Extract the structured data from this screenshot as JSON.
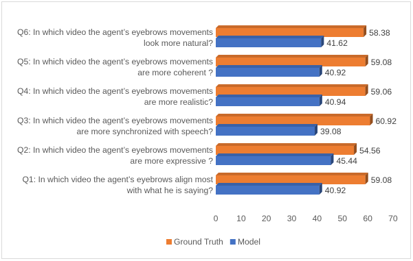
{
  "chart_data": {
    "type": "bar",
    "orientation": "horizontal",
    "style": "3d",
    "categories": [
      [
        "Q6: In which video the agent’s eyebrows movements",
        "look more natural?"
      ],
      [
        "Q5: In which video the agent’s eyebrows movements",
        "are more coherent ?"
      ],
      [
        "Q4: In which video the agent’s eyebrows movements",
        "are more realistic?"
      ],
      [
        "Q3: In which video the agent’s eyebrows movements",
        "are more synchronized with speech?"
      ],
      [
        "Q2: In which video the agent’s eyebrows movements",
        "are more expressive ?"
      ],
      [
        "Q1: In which video the agent’s eyebrows align most",
        "with what he is saying?"
      ]
    ],
    "series": [
      {
        "name": "Ground Truth",
        "color": "#ed7d31",
        "values": [
          58.38,
          59.08,
          59.06,
          60.92,
          54.56,
          59.08
        ]
      },
      {
        "name": "Model",
        "color": "#4472c4",
        "values": [
          41.62,
          40.92,
          40.94,
          39.08,
          45.44,
          40.92
        ]
      }
    ],
    "xlim": [
      0,
      70
    ],
    "xticks": [
      0,
      10,
      20,
      30,
      40,
      50,
      60,
      70
    ],
    "grid": false,
    "legend_position": "bottom"
  }
}
